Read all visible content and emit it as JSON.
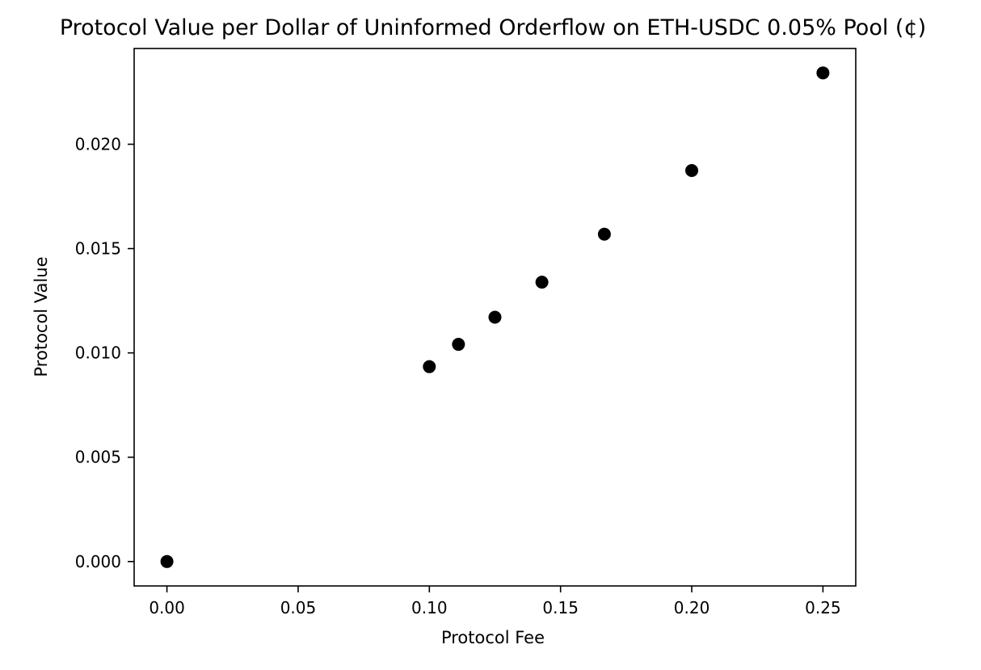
{
  "chart_data": {
    "type": "scatter",
    "title": "Protocol Value per Dollar of Uninformed Orderflow on ETH-USDC 0.05% Pool (¢)",
    "xlabel": "Protocol Fee",
    "ylabel": "Protocol Value",
    "xlim": [
      -0.0125,
      0.2625
    ],
    "ylim": [
      -0.00117,
      0.02459
    ],
    "xticks": [
      0.0,
      0.05,
      0.1,
      0.15,
      0.2,
      0.25
    ],
    "xtick_labels": [
      "0.00",
      "0.05",
      "0.10",
      "0.15",
      "0.20",
      "0.25"
    ],
    "yticks": [
      0.0,
      0.005,
      0.01,
      0.015,
      0.02
    ],
    "ytick_labels": [
      "0.000",
      "0.005",
      "0.010",
      "0.015",
      "0.020"
    ],
    "grid": false,
    "legend": "none",
    "marker_color": "#000000",
    "series": [
      {
        "x": [
          0.0,
          0.1,
          0.1111,
          0.125,
          0.1429,
          0.1667,
          0.2,
          0.25
        ],
        "y": [
          0.0,
          0.00934,
          0.01041,
          0.01171,
          0.01339,
          0.01569,
          0.01874,
          0.02342
        ]
      }
    ]
  }
}
